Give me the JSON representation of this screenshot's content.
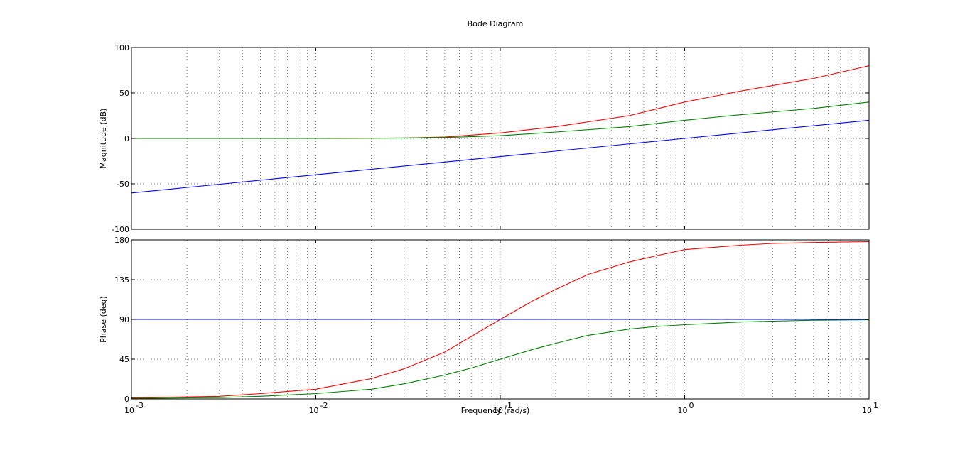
{
  "chart_data": {
    "type": "line",
    "title": "Bode Diagram",
    "xlabel": "Frequency  (rad/s)",
    "x_scale": "log",
    "xlim": [
      0.001,
      10
    ],
    "x_tick_labels": [
      {
        "base": "10",
        "exp": "-3"
      },
      {
        "base": "10",
        "exp": "-2"
      },
      {
        "base": "10",
        "exp": "-1"
      },
      {
        "base": "10",
        "exp": "0"
      },
      {
        "base": "10",
        "exp": "1"
      }
    ],
    "grid": true,
    "subplots": [
      {
        "ylabel": "Magnitude (dB)",
        "ylim": [
          -100,
          100
        ],
        "yticks": [
          "100",
          "50",
          "0",
          "-50",
          "-100"
        ],
        "ytick_values": [
          100,
          50,
          0,
          -50,
          -100
        ],
        "series": [
          {
            "color": "#ff0000",
            "x": [
              0.001,
              0.01,
              0.03,
              0.05,
              0.1,
              0.2,
              0.5,
              1,
              2,
              5,
              10
            ],
            "y": [
              0,
              0,
              0.5,
              1.5,
              6,
              13,
              25,
              40,
              52,
              66,
              80
            ]
          },
          {
            "color": "#008000",
            "x": [
              0.001,
              0.01,
              0.03,
              0.05,
              0.1,
              0.2,
              0.5,
              1,
              2,
              5,
              10
            ],
            "y": [
              0,
              0,
              0.5,
              1,
              3,
              7,
              13,
              20,
              26,
              33,
              40
            ]
          },
          {
            "color": "#0000ff",
            "x": [
              0.001,
              0.01,
              0.1,
              1,
              10
            ],
            "y": [
              -60,
              -40,
              -20,
              0,
              20
            ]
          }
        ]
      },
      {
        "ylabel": "Phase (deg)",
        "ylim": [
          0,
          180
        ],
        "yticks": [
          "180",
          "135",
          "90",
          "45",
          "0"
        ],
        "ytick_values": [
          180,
          135,
          90,
          45,
          0
        ],
        "series": [
          {
            "color": "#ff0000",
            "x": [
              0.001,
              0.003,
              0.005,
              0.01,
              0.02,
              0.03,
              0.05,
              0.07,
              0.1,
              0.15,
              0.2,
              0.3,
              0.5,
              0.7,
              1,
              2,
              3,
              5,
              10
            ],
            "y": [
              1.2,
              3,
              6,
              11,
              23,
              34,
              53,
              71,
              90,
              111,
              124,
              141,
              155,
              162,
              169,
              174,
              176,
              177,
              178
            ]
          },
          {
            "color": "#008000",
            "x": [
              0.001,
              0.003,
              0.005,
              0.01,
              0.02,
              0.03,
              0.05,
              0.07,
              0.1,
              0.15,
              0.2,
              0.3,
              0.5,
              0.7,
              1,
              2,
              3,
              5,
              10
            ],
            "y": [
              0.6,
              1.5,
              3,
              6,
              11,
              17,
              27,
              35,
              45,
              56,
              63,
              72,
              79,
              82,
              84,
              87,
              88,
              89,
              89.5
            ]
          },
          {
            "color": "#0000ff",
            "x": [
              0.001,
              10
            ],
            "y": [
              90,
              90
            ]
          }
        ]
      }
    ]
  }
}
